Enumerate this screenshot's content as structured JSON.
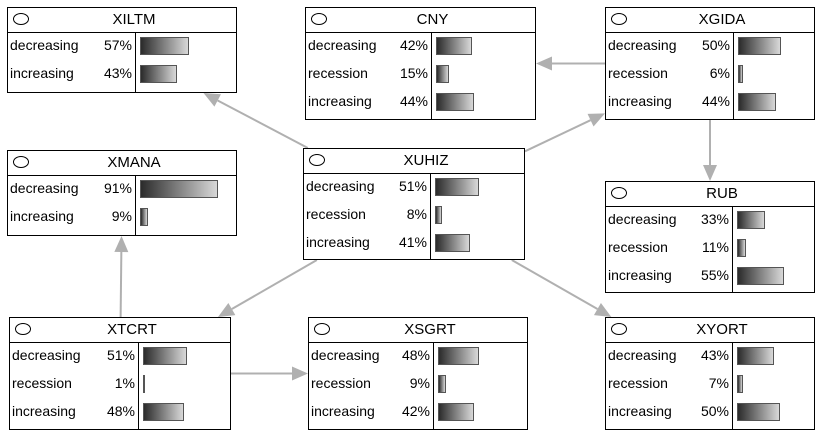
{
  "nodes": [
    {
      "id": "XILTM",
      "title": "XILTM",
      "states": [
        {
          "label": "decreasing",
          "pct": "57%",
          "value": 57
        },
        {
          "label": "increasing",
          "pct": "43%",
          "value": 43
        }
      ]
    },
    {
      "id": "CNY",
      "title": "CNY",
      "states": [
        {
          "label": "decreasing",
          "pct": "42%",
          "value": 42
        },
        {
          "label": "recession",
          "pct": "15%",
          "value": 15
        },
        {
          "label": "increasing",
          "pct": "44%",
          "value": 44
        }
      ]
    },
    {
      "id": "XGIDA",
      "title": "XGIDA",
      "states": [
        {
          "label": "decreasing",
          "pct": "50%",
          "value": 50
        },
        {
          "label": "recession",
          "pct": "6%",
          "value": 6
        },
        {
          "label": "increasing",
          "pct": "44%",
          "value": 44
        }
      ]
    },
    {
      "id": "XMANA",
      "title": "XMANA",
      "states": [
        {
          "label": "decreasing",
          "pct": "91%",
          "value": 91
        },
        {
          "label": "increasing",
          "pct": "9%",
          "value": 9
        }
      ]
    },
    {
      "id": "XUHIZ",
      "title": "XUHIZ",
      "states": [
        {
          "label": "decreasing",
          "pct": "51%",
          "value": 51
        },
        {
          "label": "recession",
          "pct": "8%",
          "value": 8
        },
        {
          "label": "increasing",
          "pct": "41%",
          "value": 41
        }
      ]
    },
    {
      "id": "RUB",
      "title": "RUB",
      "states": [
        {
          "label": "decreasing",
          "pct": "33%",
          "value": 33
        },
        {
          "label": "recession",
          "pct": "11%",
          "value": 11
        },
        {
          "label": "increasing",
          "pct": "55%",
          "value": 55
        }
      ]
    },
    {
      "id": "XTCRT",
      "title": "XTCRT",
      "states": [
        {
          "label": "decreasing",
          "pct": "51%",
          "value": 51
        },
        {
          "label": "recession",
          "pct": "1%",
          "value": 1
        },
        {
          "label": "increasing",
          "pct": "48%",
          "value": 48
        }
      ]
    },
    {
      "id": "XSGRT",
      "title": "XSGRT",
      "states": [
        {
          "label": "decreasing",
          "pct": "48%",
          "value": 48
        },
        {
          "label": "recession",
          "pct": "9%",
          "value": 9
        },
        {
          "label": "increasing",
          "pct": "42%",
          "value": 42
        }
      ]
    },
    {
      "id": "XYORT",
      "title": "XYORT",
      "states": [
        {
          "label": "decreasing",
          "pct": "43%",
          "value": 43
        },
        {
          "label": "recession",
          "pct": "7%",
          "value": 7
        },
        {
          "label": "increasing",
          "pct": "50%",
          "value": 50
        }
      ]
    }
  ],
  "edges": [
    {
      "from": "XUHIZ",
      "to": "XILTM"
    },
    {
      "from": "XUHIZ",
      "to": "XGIDA"
    },
    {
      "from": "XGIDA",
      "to": "CNY"
    },
    {
      "from": "XGIDA",
      "to": "RUB"
    },
    {
      "from": "XUHIZ",
      "to": "XTCRT"
    },
    {
      "from": "XUHIZ",
      "to": "XYORT"
    },
    {
      "from": "XTCRT",
      "to": "XMANA"
    },
    {
      "from": "XTCRT",
      "to": "XSGRT"
    }
  ],
  "colors": {
    "edge": "#b0b0b0",
    "border": "#000000"
  }
}
